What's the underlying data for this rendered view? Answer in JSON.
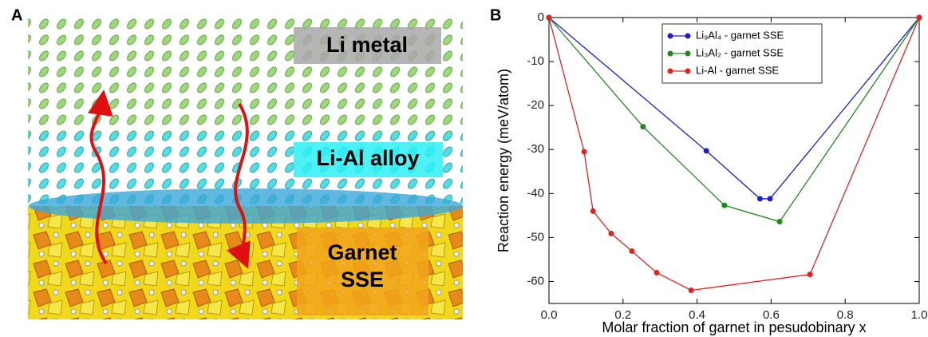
{
  "panel_labels": [
    "A",
    "B"
  ],
  "illustration": {
    "layers": [
      "Li metal",
      "Li-Al alloy"
    ],
    "garnet": [
      "Garnet",
      "SSE"
    ]
  },
  "chart_data": {
    "type": "line",
    "xlabel": "Molar fraction of garnet in pesudobinary x",
    "ylabel": "Reaction energy (meV/atom)",
    "xlim": [
      0,
      1
    ],
    "ylim": [
      -65,
      0
    ],
    "xticks": [
      {
        "value": 0,
        "label": "0.0"
      },
      {
        "value": 0.2,
        "label": "0.2"
      },
      {
        "value": 0.4,
        "label": "0.4"
      },
      {
        "value": 0.6,
        "label": "0.6"
      },
      {
        "value": 0.8,
        "label": "0.8"
      },
      {
        "value": 1,
        "label": "1.0"
      }
    ],
    "yticks": [
      0,
      -10,
      -20,
      -30,
      -40,
      -50,
      -60
    ],
    "legend": "upper center",
    "grid": false,
    "series": [
      {
        "name": "Li₉Al₄ - garnet SSE",
        "color": "#1f1fd0",
        "x": [
          0,
          0.425,
          0.57,
          0.597,
          1
        ],
        "values": [
          0,
          -30.3,
          -41.2,
          -41.2,
          0
        ]
      },
      {
        "name": "Li₃Al₂ - garnet SSE",
        "color": "#1e8a1e",
        "x": [
          0,
          0.254,
          0.474,
          0.623,
          1
        ],
        "values": [
          0,
          -24.8,
          -42.7,
          -46.4,
          0
        ]
      },
      {
        "name": "Li-Al - garnet SSE",
        "color": "#e0231e",
        "x": [
          0,
          0.095,
          0.119,
          0.168,
          0.224,
          0.291,
          0.384,
          0.705,
          1
        ],
        "values": [
          0,
          -30.5,
          -44,
          -49.1,
          -53.1,
          -58,
          -62,
          -58.4,
          0
        ]
      }
    ]
  }
}
